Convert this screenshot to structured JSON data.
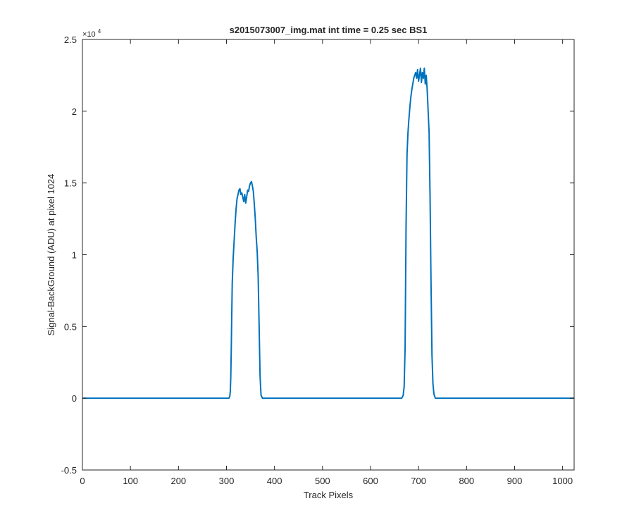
{
  "chart_data": {
    "type": "line",
    "title": "s2015073007_img.mat int time = 0.25 sec   BS1",
    "xlabel": "Track Pixels",
    "ylabel": "Signal-BackGround (ADU) at pixel 1024",
    "xlim": [
      0,
      1024
    ],
    "ylim": [
      -5000,
      25000
    ],
    "y_exponent": "×10",
    "y_exponent_power": "4",
    "x_ticks": [
      0,
      100,
      200,
      300,
      400,
      500,
      600,
      700,
      800,
      900,
      1000
    ],
    "x_tick_labels": [
      "0",
      "100",
      "200",
      "300",
      "400",
      "500",
      "600",
      "700",
      "800",
      "900",
      "1000"
    ],
    "y_ticks": [
      -5000,
      0,
      5000,
      10000,
      15000,
      20000,
      25000
    ],
    "y_tick_labels": [
      "-0.5",
      "0",
      "0.5",
      "1",
      "1.5",
      "2",
      "2.5"
    ],
    "grid": false,
    "line_color": "#0072BD",
    "series": [
      {
        "x": [
          0,
          100,
          200,
          300,
          305,
          307,
          308,
          309,
          310,
          312,
          314,
          316,
          318,
          320,
          322,
          324,
          326,
          328,
          330,
          332,
          334,
          336,
          338,
          340,
          342,
          344,
          346,
          348,
          350,
          352,
          354,
          356,
          358,
          360,
          362,
          364,
          366,
          368,
          370,
          372,
          375,
          380,
          450,
          550,
          650,
          665,
          668,
          670,
          672,
          674,
          676,
          678,
          680,
          682,
          684,
          686,
          688,
          690,
          692,
          694,
          696,
          698,
          700,
          702,
          704,
          706,
          708,
          710,
          712,
          714,
          716,
          718,
          720,
          722,
          724,
          726,
          728,
          730,
          732,
          735,
          740,
          800,
          900,
          1024
        ],
        "y": [
          0,
          0,
          0,
          0,
          0,
          150,
          500,
          1500,
          3500,
          8000,
          9800,
          11000,
          12200,
          13200,
          13900,
          14200,
          14500,
          14600,
          14200,
          14300,
          14000,
          13700,
          14200,
          13600,
          14000,
          14500,
          14400,
          14800,
          15000,
          15100,
          14800,
          14400,
          13500,
          12500,
          11200,
          10200,
          8500,
          5000,
          1500,
          200,
          0,
          0,
          0,
          0,
          0,
          0,
          200,
          800,
          3500,
          12000,
          17000,
          18500,
          19500,
          20300,
          21000,
          21500,
          21900,
          22300,
          22500,
          22700,
          22300,
          22900,
          22100,
          22500,
          23000,
          22000,
          22700,
          22300,
          23000,
          21900,
          22500,
          21500,
          20000,
          18500,
          14000,
          8000,
          3000,
          1000,
          300,
          0,
          0,
          0,
          0,
          0
        ]
      }
    ]
  }
}
